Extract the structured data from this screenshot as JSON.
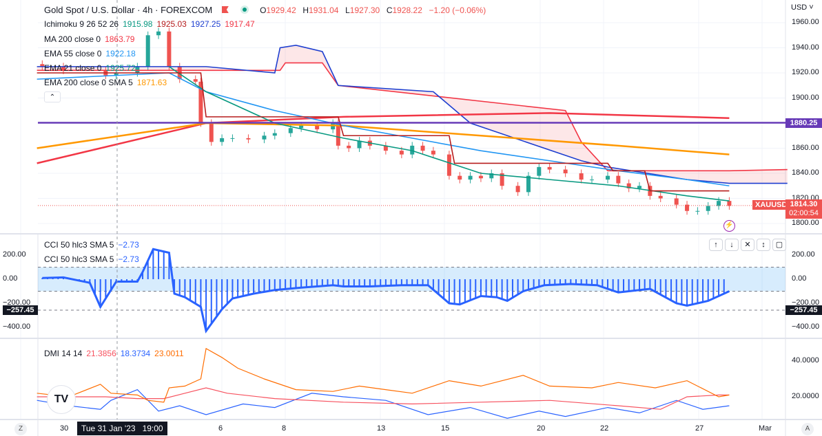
{
  "header": {
    "symbol_title": "Gold Spot / U.S. Dollar · 4h · FOREXCOM",
    "ohlc": {
      "o_label": "O",
      "o": "1929.42",
      "h_label": "H",
      "h": "1931.04",
      "l_label": "L",
      "l": "1927.30",
      "c_label": "C",
      "c": "1928.22",
      "change": "−1.20 (−0.06%)"
    }
  },
  "legends": {
    "ichimoku": {
      "label": "Ichimoku 9 26 52 26",
      "v1": "1915.98",
      "v2": "1925.03",
      "v3": "1927.25",
      "v4": "1917.47"
    },
    "ma200": {
      "label": "MA 200 close 0",
      "value": "1863.79"
    },
    "ema55": {
      "label": "EMA 55 close 0",
      "value": "1922.18"
    },
    "ema21": {
      "label": "EMA 21 close 0",
      "value": "1925.72"
    },
    "ema200": {
      "label": "EMA 200 close 0 SMA 5",
      "value": "1871.63"
    },
    "cci1": {
      "label": "CCI 50 hlc3 SMA 5",
      "value": "−2.73"
    },
    "cci2": {
      "label": "CCI 50 hlc3 SMA 5",
      "value": "−2.73"
    },
    "dmi": {
      "label": "DMI 14 14",
      "v1": "21.3856",
      "v2": "18.3734",
      "v3": "23.0011"
    }
  },
  "price_axis": {
    "currency": "USD",
    "ticks": [
      "1960.00",
      "1940.00",
      "1920.00",
      "1900.00",
      "1880.00",
      "1860.00",
      "1840.00",
      "1820.00",
      "1800.00"
    ],
    "hline_label": "1880.25",
    "symbol_badge": "XAUUSD",
    "last_price": "1814.30",
    "countdown": "02:00:54"
  },
  "cci_axis": {
    "ticks": [
      "200.00",
      "0.00",
      "−200.00",
      "−400.00"
    ],
    "cursor_value": "−257.45"
  },
  "dmi_axis": {
    "ticks": [
      "40.0000",
      "20.0000"
    ]
  },
  "time_axis": {
    "labels": [
      "30",
      "6",
      "8",
      "13",
      "15",
      "20",
      "22",
      "27",
      "Mar"
    ],
    "cursor_label": "Tue 31 Jan '23   19:00",
    "left_btn": "Z",
    "right_btn": "A"
  },
  "colors": {
    "up": "#26a69a",
    "down": "#ef5350",
    "hline": "#673ab7",
    "ema55": "#2196f3",
    "ema200": "#ff9800",
    "ma200": "#f23645",
    "ema21": "#089981",
    "base": "#b71c1c",
    "spanA": "#f23645",
    "spanB": "#1e3fd0",
    "cci": "#2962ff",
    "dmi_plus": "#2962ff",
    "dmi_minus": "#f7525f",
    "adx": "#ff6d00"
  },
  "chart_data": [
    {
      "type": "candlestick",
      "title": "Gold Spot / U.S. Dollar 4h",
      "x_unit": "4h bar index from 30 Jan",
      "ylim": [
        1795,
        1970
      ],
      "candles": [
        [
          -4,
          1925
        ],
        [
          0,
          1922
        ],
        [
          8,
          1918
        ],
        [
          10,
          1920
        ],
        [
          14,
          1925
        ],
        [
          16,
          1950
        ],
        [
          18,
          1953
        ],
        [
          20,
          1925
        ],
        [
          22,
          1915
        ],
        [
          25,
          1913
        ],
        [
          26,
          1880
        ],
        [
          28,
          1865
        ],
        [
          30,
          1868
        ],
        [
          32,
          1868
        ],
        [
          35,
          1867
        ],
        [
          38,
          1870
        ],
        [
          40,
          1872
        ],
        [
          43,
          1876
        ],
        [
          45,
          1878
        ],
        [
          48,
          1875
        ],
        [
          51,
          1880
        ],
        [
          52,
          1862
        ],
        [
          54,
          1860
        ],
        [
          56,
          1866
        ],
        [
          58,
          1862
        ],
        [
          61,
          1858
        ],
        [
          64,
          1855
        ],
        [
          66,
          1862
        ],
        [
          68,
          1858
        ],
        [
          70,
          1855
        ],
        [
          73,
          1838
        ],
        [
          75,
          1835
        ],
        [
          77,
          1838
        ],
        [
          79,
          1836
        ],
        [
          81,
          1840
        ],
        [
          83,
          1830
        ],
        [
          86,
          1825
        ],
        [
          88,
          1838
        ],
        [
          90,
          1845
        ],
        [
          92,
          1843
        ],
        [
          95,
          1840
        ],
        [
          98,
          1835
        ],
        [
          100,
          1835
        ],
        [
          103,
          1838
        ],
        [
          105,
          1832
        ],
        [
          107,
          1828
        ],
        [
          109,
          1830
        ],
        [
          111,
          1822
        ],
        [
          113,
          1820
        ],
        [
          116,
          1815
        ],
        [
          118,
          1810
        ],
        [
          120,
          1810
        ],
        [
          122,
          1814
        ],
        [
          124,
          1818
        ],
        [
          126,
          1814
        ]
      ],
      "hline": 1880.25,
      "last": 1814.3,
      "series": [
        {
          "name": "Ichimoku Lead A",
          "key": "spanA",
          "points": [
            [
              -5,
              1922
            ],
            [
              27,
              1922
            ],
            [
              41,
              1922
            ],
            [
              42,
              1928
            ],
            [
              49,
              1928
            ],
            [
              52,
              1910
            ],
            [
              95,
              1890
            ],
            [
              98,
              1865
            ],
            [
              103,
              1842
            ],
            [
              126,
              1842
            ],
            [
              137,
              1843
            ]
          ]
        },
        {
          "name": "Ichimoku Lead B",
          "key": "spanB",
          "points": [
            [
              -5,
              1925
            ],
            [
              27,
              1925
            ],
            [
              40,
              1920
            ],
            [
              41,
              1940
            ],
            [
              44,
              1942
            ],
            [
              49,
              1937
            ],
            [
              52,
              1910
            ],
            [
              70,
              1905
            ],
            [
              77,
              1880
            ],
            [
              98,
              1850
            ],
            [
              103,
              1845
            ],
            [
              118,
              1835
            ],
            [
              126,
              1832
            ],
            [
              137,
              1832
            ]
          ]
        },
        {
          "name": "MA 200",
          "key": "ma200",
          "points": [
            [
              -5,
              1848
            ],
            [
              27,
              1880
            ],
            [
              53,
              1885
            ],
            [
              92,
              1888
            ],
            [
              126,
              1884
            ]
          ]
        },
        {
          "name": "EMA 200",
          "key": "ema200",
          "points": [
            [
              -5,
              1860
            ],
            [
              27,
              1880
            ],
            [
              53,
              1878
            ],
            [
              79,
              1870
            ],
            [
              105,
              1862
            ],
            [
              126,
              1855
            ]
          ]
        },
        {
          "name": "EMA 55",
          "key": "ema55",
          "points": [
            [
              -5,
              1915
            ],
            [
              20,
              1920
            ],
            [
              27,
              1905
            ],
            [
              40,
              1890
            ],
            [
              53,
              1878
            ],
            [
              66,
              1868
            ],
            [
              79,
              1858
            ],
            [
              92,
              1850
            ],
            [
              105,
              1842
            ],
            [
              118,
              1835
            ],
            [
              126,
              1830
            ]
          ]
        },
        {
          "name": "EMA 21",
          "key": "ema21",
          "points": [
            [
              20,
              1925
            ],
            [
              27,
              1905
            ],
            [
              40,
              1880
            ],
            [
              53,
              1868
            ],
            [
              66,
              1858
            ],
            [
              79,
              1840
            ],
            [
              92,
              1835
            ],
            [
              105,
              1830
            ],
            [
              118,
              1822
            ],
            [
              126,
              1818
            ]
          ]
        },
        {
          "name": "Ichimoku Base",
          "key": "base",
          "points": [
            [
              -5,
              1920
            ],
            [
              26,
              1920
            ],
            [
              27,
              1885
            ],
            [
              52,
              1885
            ],
            [
              53,
              1870
            ],
            [
              73,
              1870
            ],
            [
              74,
              1848
            ],
            [
              103,
              1848
            ],
            [
              104,
              1842
            ],
            [
              110,
              1842
            ],
            [
              111,
              1826
            ],
            [
              126,
              1826
            ]
          ]
        }
      ]
    },
    {
      "type": "line+histogram",
      "title": "CCI 50 hlc3 SMA 5",
      "ylim": [
        -450,
        280
      ],
      "bands": [
        100,
        -100
      ],
      "cursor_level": -257.45,
      "points": [
        [
          -4,
          10
        ],
        [
          0,
          15
        ],
        [
          5,
          -30
        ],
        [
          7,
          -230
        ],
        [
          10,
          -20
        ],
        [
          14,
          -20
        ],
        [
          15,
          60
        ],
        [
          17,
          250
        ],
        [
          19,
          230
        ],
        [
          20,
          220
        ],
        [
          21,
          -120
        ],
        [
          23,
          -150
        ],
        [
          26,
          -230
        ],
        [
          27,
          -430
        ],
        [
          30,
          -250
        ],
        [
          32,
          -160
        ],
        [
          36,
          -120
        ],
        [
          40,
          -90
        ],
        [
          45,
          -70
        ],
        [
          51,
          -50
        ],
        [
          53,
          -60
        ],
        [
          58,
          -60
        ],
        [
          64,
          -50
        ],
        [
          69,
          -50
        ],
        [
          73,
          -200
        ],
        [
          75,
          -210
        ],
        [
          79,
          -140
        ],
        [
          82,
          -150
        ],
        [
          84,
          -180
        ],
        [
          87,
          -100
        ],
        [
          91,
          -50
        ],
        [
          96,
          -40
        ],
        [
          101,
          -50
        ],
        [
          105,
          -110
        ],
        [
          111,
          -80
        ],
        [
          116,
          -200
        ],
        [
          118,
          -220
        ],
        [
          122,
          -180
        ],
        [
          126,
          -100
        ]
      ]
    },
    {
      "type": "line",
      "title": "DMI 14 14",
      "ylim": [
        5,
        50
      ],
      "series": [
        {
          "name": "+DI",
          "key": "dmi_plus",
          "points": [
            [
              -5,
              18
            ],
            [
              1,
              15
            ],
            [
              7,
              13
            ],
            [
              9,
              18
            ],
            [
              14,
              24
            ],
            [
              18,
              12
            ],
            [
              22,
              15
            ],
            [
              27,
              10
            ],
            [
              34,
              16
            ],
            [
              40,
              14
            ],
            [
              47,
              22
            ],
            [
              53,
              20
            ],
            [
              61,
              18
            ],
            [
              69,
              10
            ],
            [
              77,
              14
            ],
            [
              84,
              8
            ],
            [
              90,
              12
            ],
            [
              95,
              9
            ],
            [
              103,
              14
            ],
            [
              109,
              11
            ],
            [
              116,
              18
            ],
            [
              121,
              13
            ],
            [
              126,
              15
            ]
          ]
        },
        {
          "name": "-DI",
          "key": "dmi_minus",
          "points": [
            [
              -5,
              20
            ],
            [
              8,
              20
            ],
            [
              14,
              19
            ],
            [
              19,
              19
            ],
            [
              23,
              22
            ],
            [
              27,
              25
            ],
            [
              31,
              22
            ],
            [
              40,
              19
            ],
            [
              53,
              17
            ],
            [
              66,
              16
            ],
            [
              79,
              17
            ],
            [
              92,
              18
            ],
            [
              105,
              15
            ],
            [
              113,
              13
            ],
            [
              118,
              20
            ],
            [
              124,
              21
            ],
            [
              126,
              21
            ]
          ]
        },
        {
          "name": "ADX",
          "key": "adx",
          "points": [
            [
              -5,
              22
            ],
            [
              1,
              20
            ],
            [
              7,
              27
            ],
            [
              9,
              22
            ],
            [
              14,
              21
            ],
            [
              16,
              18
            ],
            [
              19,
              17
            ],
            [
              20,
              25
            ],
            [
              23,
              26
            ],
            [
              26,
              30
            ],
            [
              27,
              47
            ],
            [
              30,
              42
            ],
            [
              33,
              36
            ],
            [
              38,
              30
            ],
            [
              44,
              24
            ],
            [
              51,
              23
            ],
            [
              56,
              26
            ],
            [
              61,
              24
            ],
            [
              66,
              22
            ],
            [
              73,
              29
            ],
            [
              79,
              26
            ],
            [
              87,
              32
            ],
            [
              92,
              26
            ],
            [
              100,
              25
            ],
            [
              105,
              28
            ],
            [
              112,
              25
            ],
            [
              118,
              29
            ],
            [
              124,
              20
            ],
            [
              126,
              21
            ]
          ]
        }
      ]
    }
  ]
}
